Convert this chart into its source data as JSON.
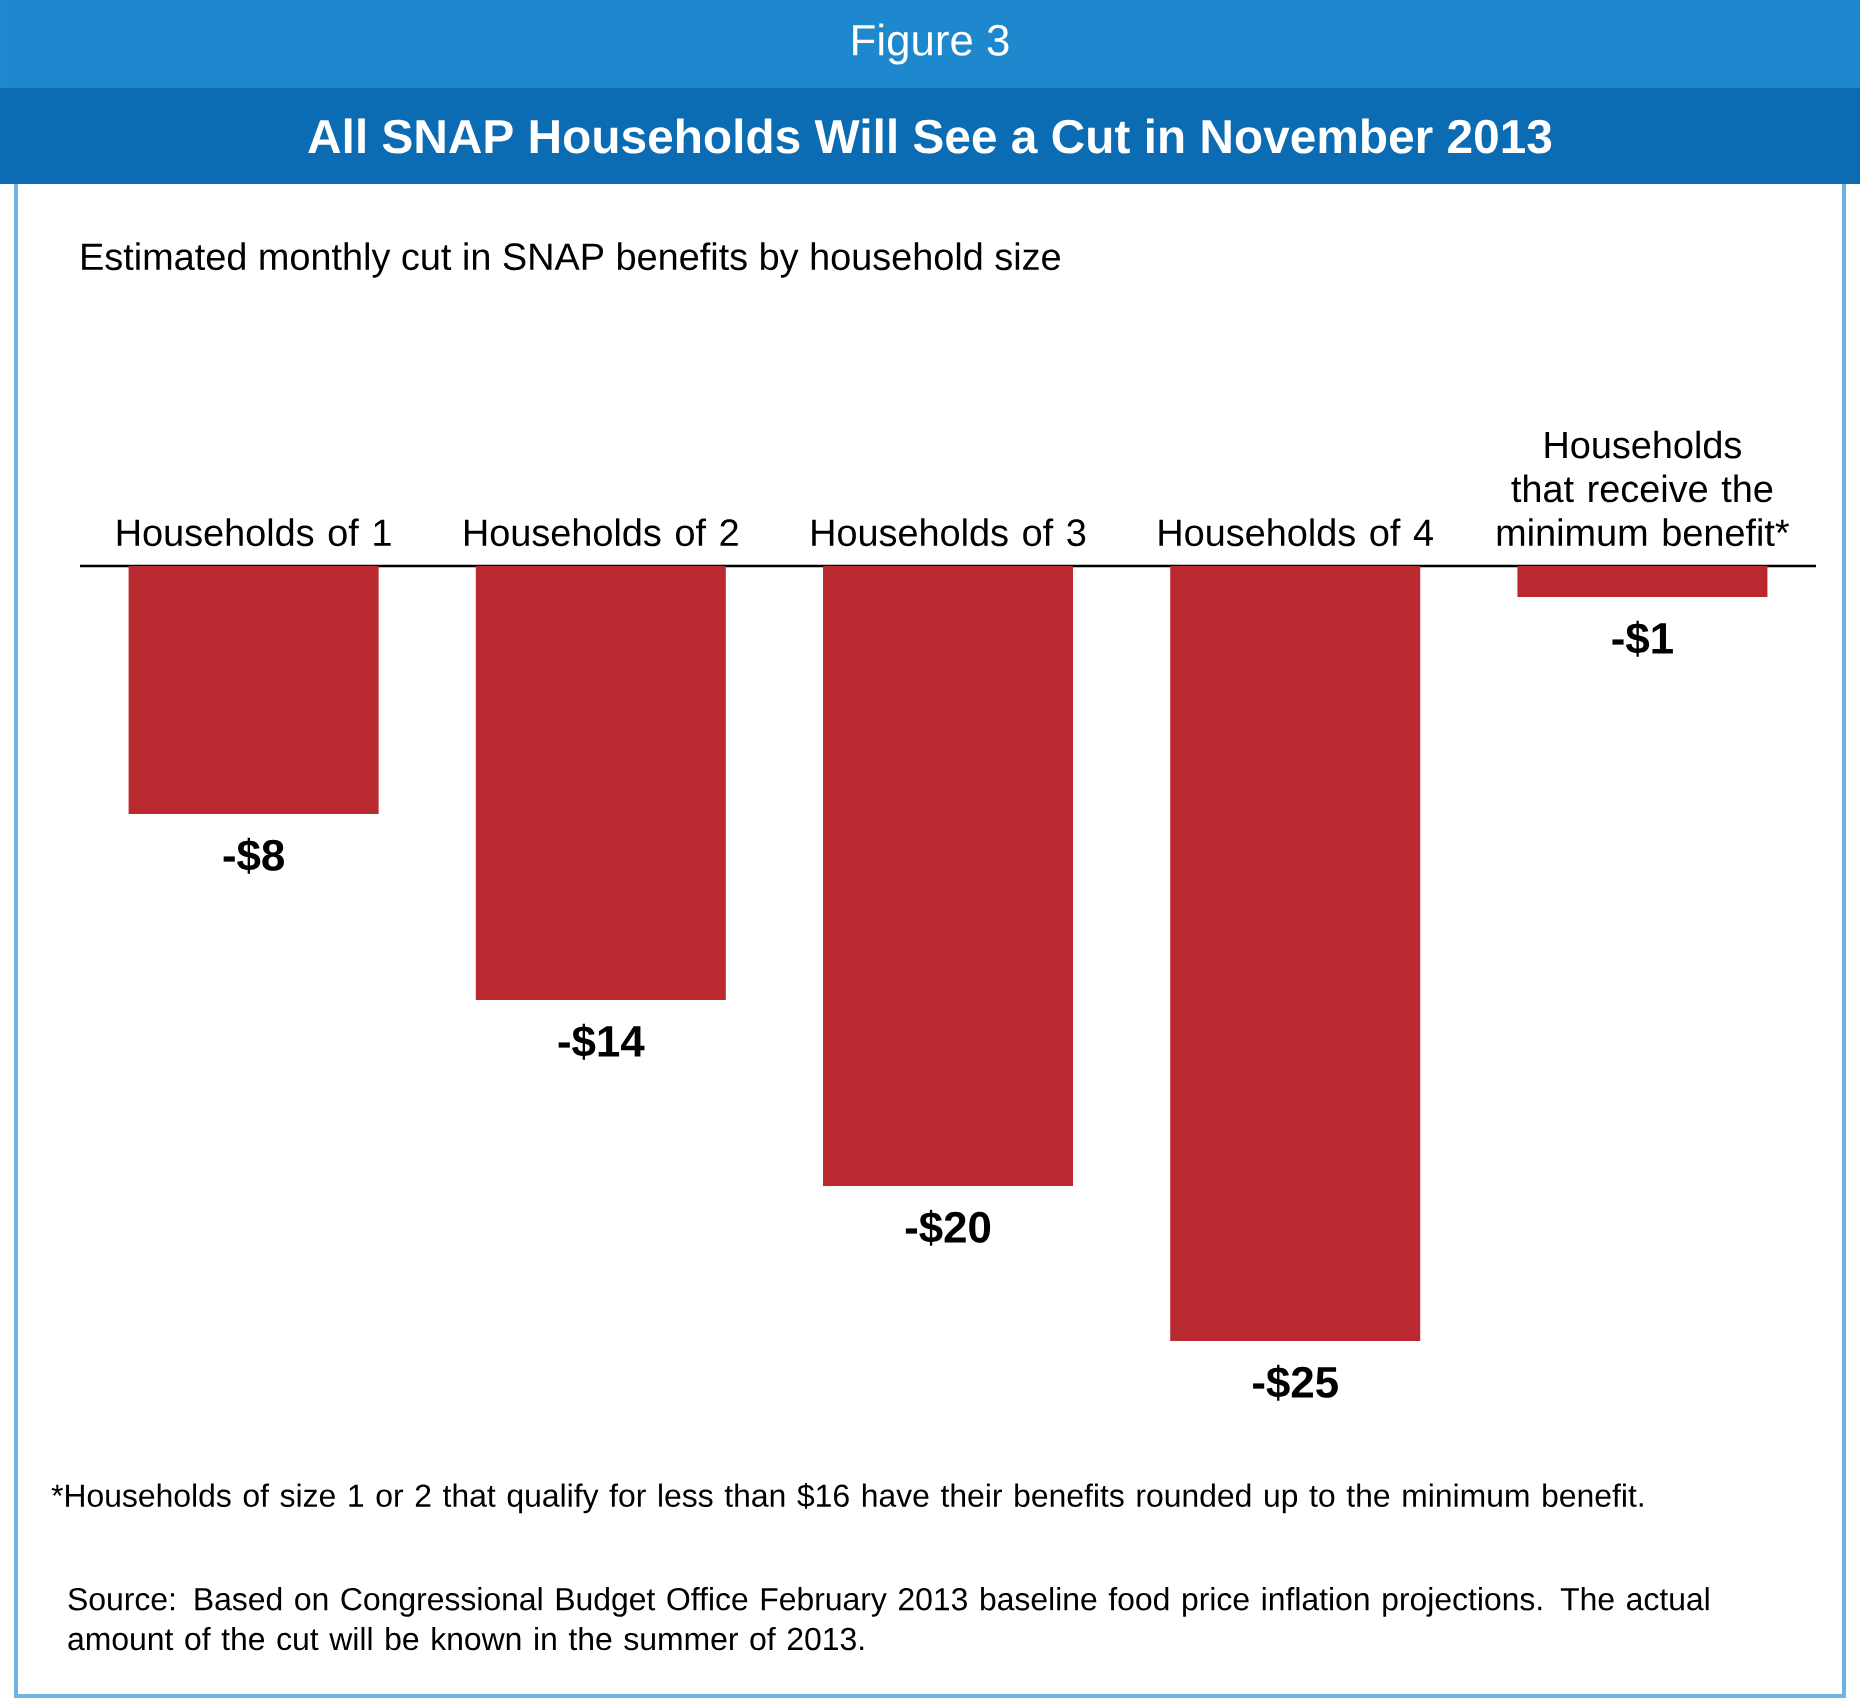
{
  "chart_data": {
    "type": "bar",
    "title": "All SNAP Households Will See a Cut in November 2013",
    "subtitle": "Estimated monthly cut in SNAP benefits by household size",
    "categories": [
      "Households of 1",
      "Households of 2",
      "Households of 3",
      "Households of 4",
      "Households that receive the minimum benefit*"
    ],
    "values": [
      -8,
      -14,
      -20,
      -25,
      -1
    ],
    "color": "#b92a30",
    "value_labels": [
      "-$8",
      "-$14",
      "-$20",
      "-$25",
      "-$1"
    ],
    "annotations": [
      "Figure 3",
      "*Households of size 1 or 2 that qualify for less than $16 have their benefits rounded up to the minimum benefit.",
      "Source: Based on Congressional Budget Office February 2013 baseline food price inflation projections. The actual amount of the cut will be known in the summer of 2013."
    ]
  }
}
